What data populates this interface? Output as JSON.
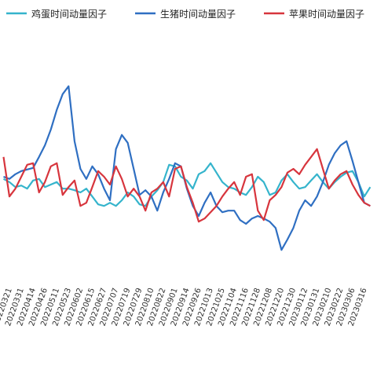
{
  "chart_data": {
    "type": "line",
    "categories": [
      null,
      "20220321",
      null,
      "20220331",
      null,
      "20220414",
      null,
      "20220426",
      null,
      "20220511",
      null,
      "20220523",
      null,
      "20220602",
      null,
      "20220615",
      null,
      "20220627",
      null,
      "20220707",
      null,
      "20220719",
      null,
      "20220729",
      null,
      "20220810",
      null,
      "20220822",
      null,
      "20220901",
      null,
      "20220914",
      null,
      "20220926",
      null,
      "20221013",
      null,
      "20221025",
      null,
      "20221104",
      null,
      "20221116",
      null,
      "20221128",
      null,
      "20221208",
      null,
      "20221220",
      null,
      "20221230",
      null,
      "20230112",
      null,
      "20230131",
      null,
      "20230210",
      null,
      "20230222",
      null,
      "20230306",
      null,
      "20230316",
      null
    ],
    "series": [
      {
        "name": "鸡蛋时间动量因子",
        "color": "#35b4cc",
        "values": [
          0.18,
          0.08,
          -0.08,
          -0.03,
          -0.13,
          0.13,
          0.18,
          -0.08,
          0,
          0.08,
          -0.13,
          -0.13,
          -0.18,
          -0.25,
          -0.13,
          -0.38,
          -0.63,
          -0.68,
          -0.58,
          -0.68,
          -0.5,
          -0.25,
          -0.38,
          -0.63,
          -0.68,
          -0.38,
          -0.18,
          0.08,
          0.63,
          0.58,
          0.25,
          0.13,
          -0.13,
          0.33,
          0.43,
          0.68,
          0.38,
          0.08,
          -0.08,
          -0.13,
          -0.25,
          -0.33,
          -0.08,
          0.25,
          0.08,
          -0.33,
          -0.25,
          0.13,
          0.33,
          0.08,
          -0.13,
          -0.08,
          0.13,
          0.33,
          0.08,
          -0.13,
          0.08,
          0.25,
          0.38,
          0.43,
          0.08,
          -0.38,
          -0.08
        ]
      },
      {
        "name": "生猪时间动量因子",
        "color": "#2f6fc2",
        "values": [
          0.25,
          0.18,
          0.33,
          0.43,
          0.48,
          0.53,
          0.88,
          1.25,
          1.75,
          2.38,
          2.88,
          3.13,
          1.38,
          0.5,
          0.18,
          0.58,
          0.33,
          -0.13,
          -0.5,
          1.13,
          1.58,
          1.33,
          0.5,
          -0.33,
          -0.18,
          -0.38,
          -0.83,
          -0.25,
          0.18,
          0.68,
          0.58,
          -0.13,
          -0.68,
          -1,
          -0.58,
          -0.25,
          -0.68,
          -0.88,
          -0.83,
          -0.83,
          -1.13,
          -1.25,
          -1.08,
          -1,
          -1.08,
          -1.18,
          -1.38,
          -2.08,
          -1.75,
          -1.38,
          -0.83,
          -0.5,
          -0.68,
          -0.38,
          0.08,
          0.63,
          1,
          1.25,
          1.38,
          0.75,
          0.08,
          -0.58,
          -0.68
        ]
      },
      {
        "name": "苹果时间动量因子",
        "color": "#d7353d",
        "values": [
          0.88,
          -0.38,
          -0.13,
          0.25,
          0.63,
          0.68,
          -0.25,
          0.08,
          0.58,
          0.68,
          -0.33,
          -0.08,
          0.13,
          -0.68,
          -0.58,
          -0.08,
          0.43,
          0.25,
          0,
          0.58,
          0.18,
          -0.38,
          -0.13,
          -0.38,
          -0.83,
          -0.25,
          -0.13,
          0.08,
          -0.38,
          0.5,
          0.58,
          -0.08,
          -0.58,
          -1.18,
          -1.08,
          -0.88,
          -0.68,
          -0.38,
          -0.13,
          0.08,
          -0.33,
          0.25,
          0.33,
          -0.83,
          -1.13,
          -0.5,
          -0.33,
          -0.08,
          0.38,
          0.5,
          0.33,
          0.63,
          0.88,
          1.13,
          0.5,
          -0.13,
          0.13,
          0.33,
          0.43,
          0,
          -0.33,
          -0.58,
          -0.68
        ]
      }
    ],
    "ylim": [
      -4,
      5
    ],
    "legend": "top"
  }
}
